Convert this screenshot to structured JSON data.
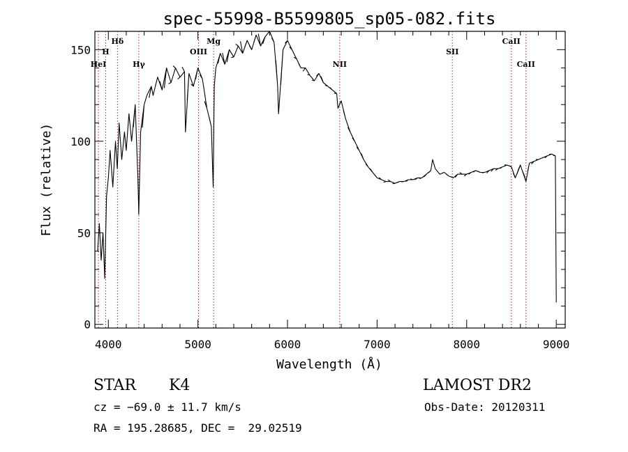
{
  "chart_data": {
    "type": "line",
    "title": "spec-55998-B5599805_sp05-082.fits",
    "xlabel": "Wavelength (Å)",
    "ylabel": "Flux (relative)",
    "xlim": [
      3850,
      9100
    ],
    "ylim": [
      -2,
      160
    ],
    "xticks": [
      4000,
      5000,
      6000,
      7000,
      8000,
      9000
    ],
    "yticks": [
      0,
      50,
      100,
      150
    ],
    "line_color": "#000000",
    "marker_color": "#b22222",
    "series": [
      {
        "x": [
          3880,
          3900,
          3920,
          3940,
          3960,
          3980,
          4000,
          4020,
          4050,
          4080,
          4100,
          4120,
          4150,
          4180,
          4200,
          4230,
          4260,
          4300,
          4330,
          4340,
          4360,
          4400,
          4430,
          4480,
          4500,
          4550,
          4600,
          4650,
          4700,
          4750,
          4800,
          4850,
          4861,
          4900,
          4950,
          5000,
          5050,
          5100,
          5150,
          5170,
          5183,
          5200,
          5250,
          5300,
          5350,
          5400,
          5450,
          5500,
          5550,
          5600,
          5650,
          5700,
          5750,
          5800,
          5850,
          5890,
          5900,
          5950,
          6000,
          6050,
          6100,
          6150,
          6200,
          6250,
          6300,
          6350,
          6400,
          6450,
          6500,
          6550,
          6563,
          6600,
          6650,
          6700,
          6750,
          6800,
          6850,
          6900,
          6950,
          7000,
          7050,
          7100,
          7150,
          7200,
          7250,
          7300,
          7350,
          7400,
          7450,
          7500,
          7550,
          7600,
          7620,
          7650,
          7700,
          7750,
          7800,
          7850,
          7900,
          7950,
          8000,
          8050,
          8100,
          8150,
          8200,
          8250,
          8300,
          8350,
          8400,
          8450,
          8500,
          8542,
          8600,
          8662,
          8700,
          8750,
          8800,
          8850,
          8900,
          8950,
          8990,
          9000
        ],
        "y": [
          40,
          55,
          35,
          50,
          25,
          70,
          80,
          95,
          75,
          100,
          85,
          110,
          90,
          105,
          95,
          115,
          100,
          120,
          80,
          60,
          105,
          120,
          125,
          130,
          125,
          135,
          128,
          140,
          132,
          140,
          135,
          138,
          105,
          137,
          130,
          140,
          134,
          118,
          108,
          75,
          130,
          140,
          148,
          142,
          150,
          146,
          152,
          148,
          155,
          150,
          158,
          152,
          157,
          160,
          154,
          130,
          115,
          150,
          155,
          150,
          145,
          140,
          140,
          136,
          133,
          137,
          132,
          130,
          128,
          126,
          118,
          122,
          112,
          105,
          100,
          95,
          90,
          86,
          83,
          80,
          79,
          78,
          78,
          77,
          78,
          78,
          79,
          79,
          80,
          80,
          82,
          84,
          90,
          85,
          82,
          83,
          81,
          80,
          82,
          82,
          82,
          83,
          84,
          83,
          83,
          84,
          85,
          85,
          86,
          87,
          86,
          80,
          87,
          78,
          88,
          89,
          90,
          91,
          92,
          93,
          92,
          12
        ]
      }
    ],
    "lines": [
      {
        "label": "HeI",
        "x": 3889,
        "label_row": 3
      },
      {
        "label": "H",
        "x": 3970,
        "label_row": 2
      },
      {
        "label": "Hδ",
        "x": 4102,
        "label_row": 1
      },
      {
        "label": "Hγ",
        "x": 4340,
        "label_row": 3
      },
      {
        "label": "OIII",
        "x": 5007,
        "label_row": 2
      },
      {
        "label": "Mg",
        "x": 5175,
        "label_row": 1
      },
      {
        "label": "NII",
        "x": 6583,
        "label_row": 3
      },
      {
        "label": "SII",
        "x": 7840,
        "label_row": 2
      },
      {
        "label": "CaII",
        "x": 8498,
        "label_row": 1
      },
      {
        "label": "CaII",
        "x": 8662,
        "label_row": 3
      }
    ]
  },
  "info": {
    "object_class": "STAR",
    "subclass": "K4",
    "survey": "LAMOST DR2",
    "cz": "cz = −69.0 ± 11.7 km/s",
    "obs_date": "Obs-Date: 20120311",
    "coords": "RA = 195.28685, DEC =  29.02519"
  }
}
